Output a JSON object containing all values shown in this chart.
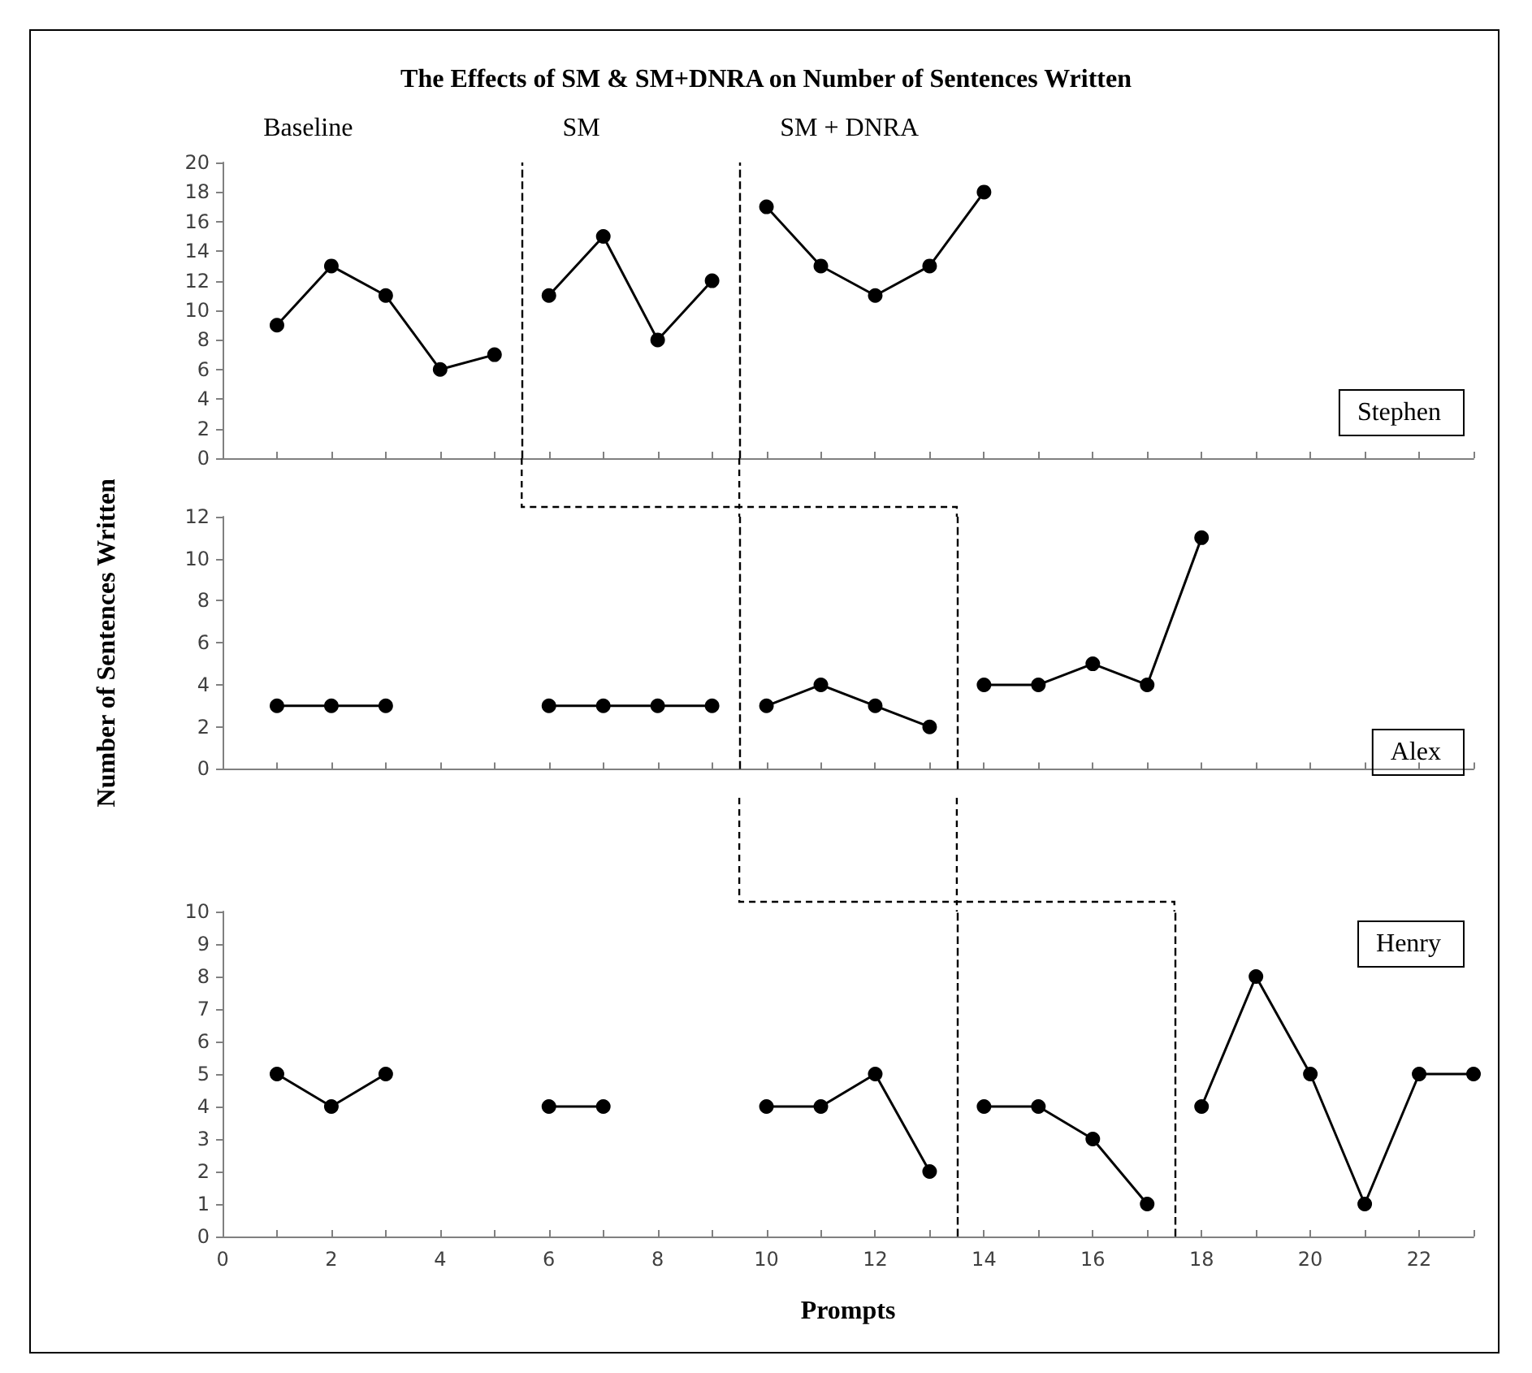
{
  "chart_data": [
    {
      "type": "line",
      "title": "The Effects of SM & SM+DNRA on Number of Sentences Written",
      "marker": "circle",
      "line_style": "solid",
      "grid": false,
      "legend": "bottom right",
      "tick_labels": "y",
      "annotations": [
        "Baseline",
        "SM",
        "SM + DNRA"
      ],
      "xlim": [
        0,
        23
      ],
      "xticks": [
        0,
        {
          "value": 1,
          "label": null
        },
        2,
        {
          "value": 3,
          "label": null
        },
        4,
        {
          "value": 5,
          "label": null
        },
        6,
        {
          "value": 7,
          "label": null
        },
        8,
        {
          "value": 9,
          "label": null
        },
        10,
        {
          "value": 11,
          "label": null
        },
        12,
        {
          "value": 13,
          "label": null
        },
        14,
        {
          "value": 15,
          "label": null
        },
        16,
        {
          "value": 17,
          "label": null
        },
        18,
        {
          "value": 19,
          "label": null
        },
        20,
        {
          "value": 21,
          "label": null
        },
        22,
        {
          "value": 23,
          "label": null
        }
      ],
      "ylim": [
        0,
        20
      ],
      "yticks": [
        0,
        2,
        4,
        6,
        8,
        10,
        12,
        14,
        16,
        18,
        20
      ],
      "ref_lines": [
        {
          "axis": "x",
          "value": 5.5,
          "color": "#000000",
          "line_style": "dashed"
        },
        {
          "axis": "x",
          "value": 9.5,
          "color": "#000000",
          "line_style": "dashed"
        }
      ],
      "series": [
        {
          "name": "Stephen",
          "color": "#000000",
          "x": [
            1,
            2,
            3,
            4,
            5,
            5.5,
            6,
            7,
            8,
            9,
            9.5,
            10,
            11,
            12,
            13,
            14
          ],
          "values": [
            9,
            13,
            11,
            6,
            7,
            null,
            11,
            15,
            8,
            12,
            null,
            17,
            13,
            11,
            13,
            18
          ]
        }
      ]
    },
    {
      "type": "line",
      "ylabel": "Number of Sentences Written",
      "marker": "circle",
      "line_style": "solid",
      "grid": false,
      "legend": "bottom right",
      "tick_labels": "y",
      "xlim": [
        0,
        23
      ],
      "xticks": [
        0,
        {
          "value": 1,
          "label": null
        },
        2,
        {
          "value": 3,
          "label": null
        },
        4,
        {
          "value": 5,
          "label": null
        },
        6,
        {
          "value": 7,
          "label": null
        },
        8,
        {
          "value": 9,
          "label": null
        },
        10,
        {
          "value": 11,
          "label": null
        },
        12,
        {
          "value": 13,
          "label": null
        },
        14,
        {
          "value": 15,
          "label": null
        },
        16,
        {
          "value": 17,
          "label": null
        },
        18,
        {
          "value": 19,
          "label": null
        },
        20,
        {
          "value": 21,
          "label": null
        },
        22,
        {
          "value": 23,
          "label": null
        }
      ],
      "ylim": [
        0,
        12
      ],
      "yticks": [
        0,
        2,
        4,
        6,
        8,
        10,
        12
      ],
      "ref_lines": [
        {
          "axis": "x",
          "value": 9.5,
          "color": "#000000",
          "line_style": "dashed"
        },
        {
          "axis": "x",
          "value": 13.5,
          "color": "#000000",
          "line_style": "dashed"
        }
      ],
      "series": [
        {
          "name": "Alex",
          "color": "#000000",
          "x": [
            1,
            2,
            3,
            4,
            6,
            7,
            8,
            9,
            9.5,
            10,
            11,
            12,
            13,
            13.5,
            14,
            15,
            16,
            17,
            18
          ],
          "values": [
            3,
            3,
            3,
            null,
            3,
            3,
            3,
            3,
            null,
            3,
            4,
            3,
            2,
            null,
            4,
            4,
            5,
            4,
            11
          ]
        }
      ]
    },
    {
      "type": "line",
      "xlabel": "Prompts",
      "marker": "circle",
      "line_style": "solid",
      "grid": false,
      "legend": "top right",
      "xlim": [
        0,
        23
      ],
      "xticks": [
        0,
        {
          "value": 1,
          "label": null
        },
        2,
        {
          "value": 3,
          "label": null
        },
        4,
        {
          "value": 5,
          "label": null
        },
        6,
        {
          "value": 7,
          "label": null
        },
        8,
        {
          "value": 9,
          "label": null
        },
        10,
        {
          "value": 11,
          "label": null
        },
        12,
        {
          "value": 13,
          "label": null
        },
        14,
        {
          "value": 15,
          "label": null
        },
        16,
        {
          "value": 17,
          "label": null
        },
        18,
        {
          "value": 19,
          "label": null
        },
        20,
        {
          "value": 21,
          "label": null
        },
        22,
        {
          "value": 23,
          "label": null
        }
      ],
      "ylim": [
        0,
        10
      ],
      "yticks": [
        0,
        1,
        2,
        3,
        4,
        5,
        6,
        7,
        8,
        9,
        10
      ],
      "ref_lines": [
        {
          "axis": "x",
          "value": 13.5,
          "color": "#000000",
          "line_style": "dashed"
        },
        {
          "axis": "x",
          "value": 17.5,
          "color": "#000000",
          "line_style": "dashed"
        }
      ],
      "series": [
        {
          "name": "Henry",
          "color": "#000000",
          "x": [
            1,
            2,
            3,
            4,
            6,
            7,
            8,
            10,
            11,
            12,
            13,
            13.5,
            14,
            15,
            16,
            17,
            17.5,
            18,
            19,
            20,
            21,
            22,
            23
          ],
          "values": [
            5,
            4,
            5,
            null,
            4,
            4,
            null,
            4,
            4,
            5,
            2,
            null,
            4,
            4,
            3,
            1,
            null,
            4,
            8,
            5,
            1,
            5,
            5
          ]
        }
      ]
    }
  ]
}
